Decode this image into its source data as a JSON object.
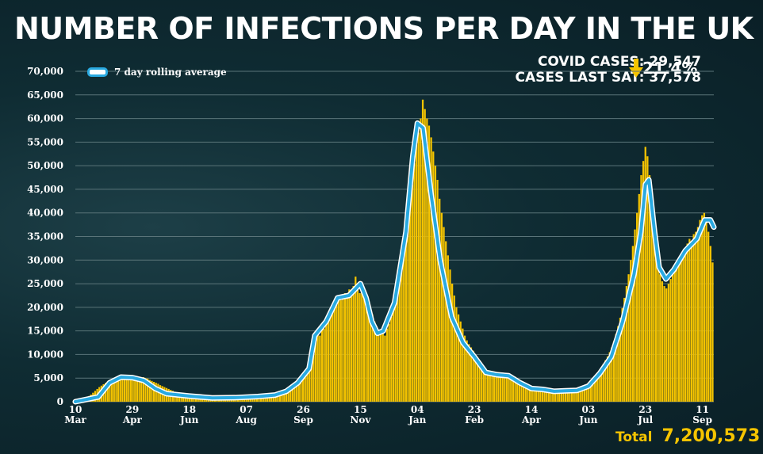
{
  "page": {
    "title": "NUMBER OF INFECTIONS PER DAY IN THE UK",
    "stats": {
      "covid_cases": "COVID CASES: 29,547",
      "cases_last_sat": "CASES LAST SAT: 37,578",
      "change": "21.4%",
      "change_direction": "down"
    },
    "total_label": "Total",
    "total_value": "7,200,573"
  },
  "colors": {
    "bars": "#f5c400",
    "rolling_line": "#29a9e0",
    "rolling_outline": "#ffffff",
    "grid": "#5a7479",
    "arrow": "#f5c400"
  },
  "chart_data": {
    "type": "bar",
    "title": "NUMBER OF INFECTIONS PER DAY IN THE UK",
    "xlabel": "",
    "ylabel": "",
    "ylim": [
      0,
      70000
    ],
    "y_ticks": [
      "0",
      "5,000",
      "10,000",
      "15,000",
      "20,000",
      "25,000",
      "30,000",
      "35,000",
      "40,000",
      "45,000",
      "50,000",
      "55,000",
      "60,000",
      "65,000",
      "70,000"
    ],
    "x_ticks": [
      {
        "day": "10",
        "month": "Mar",
        "index": 0
      },
      {
        "day": "29",
        "month": "Apr",
        "index": 50
      },
      {
        "day": "18",
        "month": "Jun",
        "index": 100
      },
      {
        "day": "07",
        "month": "Aug",
        "index": 150
      },
      {
        "day": "26",
        "month": "Sep",
        "index": 200
      },
      {
        "day": "15",
        "month": "Nov",
        "index": 250
      },
      {
        "day": "04",
        "month": "Jan",
        "index": 300
      },
      {
        "day": "23",
        "month": "Feb",
        "index": 350
      },
      {
        "day": "14",
        "month": "Apr",
        "index": 400
      },
      {
        "day": "03",
        "month": "Jun",
        "index": 450
      },
      {
        "day": "23",
        "month": "Jul",
        "index": 500
      },
      {
        "day": "11",
        "month": "Sep",
        "index": 550
      }
    ],
    "legend": {
      "label": "7 day rolling average",
      "position": "top-left"
    },
    "grid": true,
    "series": [
      {
        "name": "7 day rolling average",
        "kind": "line",
        "points": [
          [
            0,
            0
          ],
          [
            20,
            1000
          ],
          [
            30,
            4000
          ],
          [
            40,
            5200
          ],
          [
            50,
            5100
          ],
          [
            60,
            4500
          ],
          [
            70,
            2800
          ],
          [
            80,
            1700
          ],
          [
            100,
            1200
          ],
          [
            120,
            800
          ],
          [
            140,
            850
          ],
          [
            160,
            1100
          ],
          [
            175,
            1400
          ],
          [
            185,
            2200
          ],
          [
            195,
            4000
          ],
          [
            205,
            7000
          ],
          [
            210,
            14000
          ],
          [
            220,
            17000
          ],
          [
            230,
            22000
          ],
          [
            240,
            22500
          ],
          [
            250,
            25000
          ],
          [
            255,
            22000
          ],
          [
            260,
            17000
          ],
          [
            265,
            14500
          ],
          [
            270,
            15000
          ],
          [
            280,
            21000
          ],
          [
            290,
            36000
          ],
          [
            296,
            52000
          ],
          [
            300,
            59000
          ],
          [
            305,
            58000
          ],
          [
            312,
            44000
          ],
          [
            320,
            30000
          ],
          [
            330,
            18000
          ],
          [
            340,
            12500
          ],
          [
            350,
            9500
          ],
          [
            360,
            6200
          ],
          [
            370,
            5700
          ],
          [
            380,
            5500
          ],
          [
            390,
            4000
          ],
          [
            400,
            2800
          ],
          [
            410,
            2600
          ],
          [
            420,
            2200
          ],
          [
            430,
            2300
          ],
          [
            440,
            2400
          ],
          [
            450,
            3300
          ],
          [
            460,
            6000
          ],
          [
            470,
            9500
          ],
          [
            480,
            17000
          ],
          [
            490,
            27000
          ],
          [
            496,
            36000
          ],
          [
            500,
            46000
          ],
          [
            503,
            47000
          ],
          [
            508,
            36000
          ],
          [
            512,
            28500
          ],
          [
            518,
            26000
          ],
          [
            525,
            28000
          ],
          [
            535,
            32000
          ],
          [
            545,
            34500
          ],
          [
            552,
            38500
          ],
          [
            557,
            38500
          ],
          [
            560,
            37000
          ]
        ]
      }
    ],
    "bar_values": [
      400,
      500,
      600,
      700,
      800,
      1000,
      1200,
      1500,
      1900,
      2300,
      2700,
      3100,
      3400,
      3700,
      4000,
      4300,
      4600,
      4800,
      5000,
      5200,
      5400,
      5300,
      5500,
      5400,
      5300,
      5500,
      5200,
      5100,
      5300,
      5100,
      5000,
      4900,
      5200,
      5000,
      4900,
      4600,
      4400,
      4200,
      4000,
      3800,
      3500,
      3300,
      3100,
      2900,
      2700,
      2500,
      2300,
      2100,
      2000,
      1900,
      1800,
      1700,
      1600,
      1550,
      1500,
      1450,
      1400,
      1350,
      1300,
      1250,
      1200,
      1150,
      1100,
      1050,
      1000,
      950,
      900,
      880,
      860,
      840,
      820,
      800,
      800,
      800,
      820,
      840,
      860,
      880,
      900,
      920,
      940,
      960,
      980,
      1000,
      1020,
      1050,
      1080,
      1100,
      1120,
      1150,
      1180,
      1200,
      1250,
      1300,
      1350,
      1400,
      1500,
      1600,
      1750,
      1900,
      2100,
      2400,
      2700,
      3000,
      3400,
      3900,
      4500,
      5100,
      5800,
      6500,
      7200,
      8000,
      9500,
      11500,
      13500,
      15500,
      14000,
      16000,
      15500,
      17000,
      18500,
      19500,
      20500,
      21000,
      21800,
      22500,
      21500,
      22800,
      23000,
      22400,
      23800,
      22500,
      24500,
      26500,
      25000,
      23000,
      24500,
      22800,
      21000,
      20000,
      19500,
      18500,
      17000,
      16000,
      15000,
      14500,
      15000,
      14000,
      15500,
      16500,
      18000,
      19500,
      21000,
      23000,
      26000,
      29000,
      32000,
      35000,
      37500,
      42000,
      46000,
      50500,
      54500,
      57000,
      60000,
      64000,
      62000,
      60000,
      58500,
      56000,
      53000,
      50000,
      47000,
      43000,
      40000,
      37000,
      34000,
      31000,
      28000,
      25000,
      22500,
      20000,
      18500,
      17000,
      15500,
      14000,
      13000,
      12200,
      11500,
      10800,
      10000,
      9300,
      8600,
      8000,
      7400,
      6900,
      6500,
      6100,
      5900,
      5800,
      5700,
      5700,
      5600,
      5600,
      5500,
      5500,
      5600,
      5600,
      5500,
      5300,
      5000,
      4700,
      4300,
      4000,
      3700,
      3400,
      3200,
      3000,
      2900,
      2800,
      2700,
      2700,
      2600,
      2600,
      2500,
      2500,
      2400,
      2300,
      2300,
      2200,
      2200,
      2100,
      2100,
      2200,
      2200,
      2300,
      2300,
      2400,
      2500,
      2600,
      2800,
      3000,
      3300,
      3600,
      4000,
      4500,
      5000,
      5500,
      6000,
      6600,
      7300,
      8000,
      8800,
      9600,
      10500,
      11500,
      12800,
      14300,
      16000,
      17800,
      19800,
      22000,
      24500,
      27000,
      30000,
      33000,
      36500,
      40000,
      44000,
      48000,
      51000,
      54000,
      52000,
      48000,
      43000,
      38000,
      33000,
      29000,
      27000,
      25500,
      24500,
      24000,
      25000,
      26000,
      27000,
      28000,
      29000,
      29500,
      30000,
      31500,
      32500,
      33500,
      34500,
      34000,
      35500,
      36000,
      37000,
      38500,
      39500,
      40000,
      38500,
      36000,
      33000,
      29500
    ]
  }
}
